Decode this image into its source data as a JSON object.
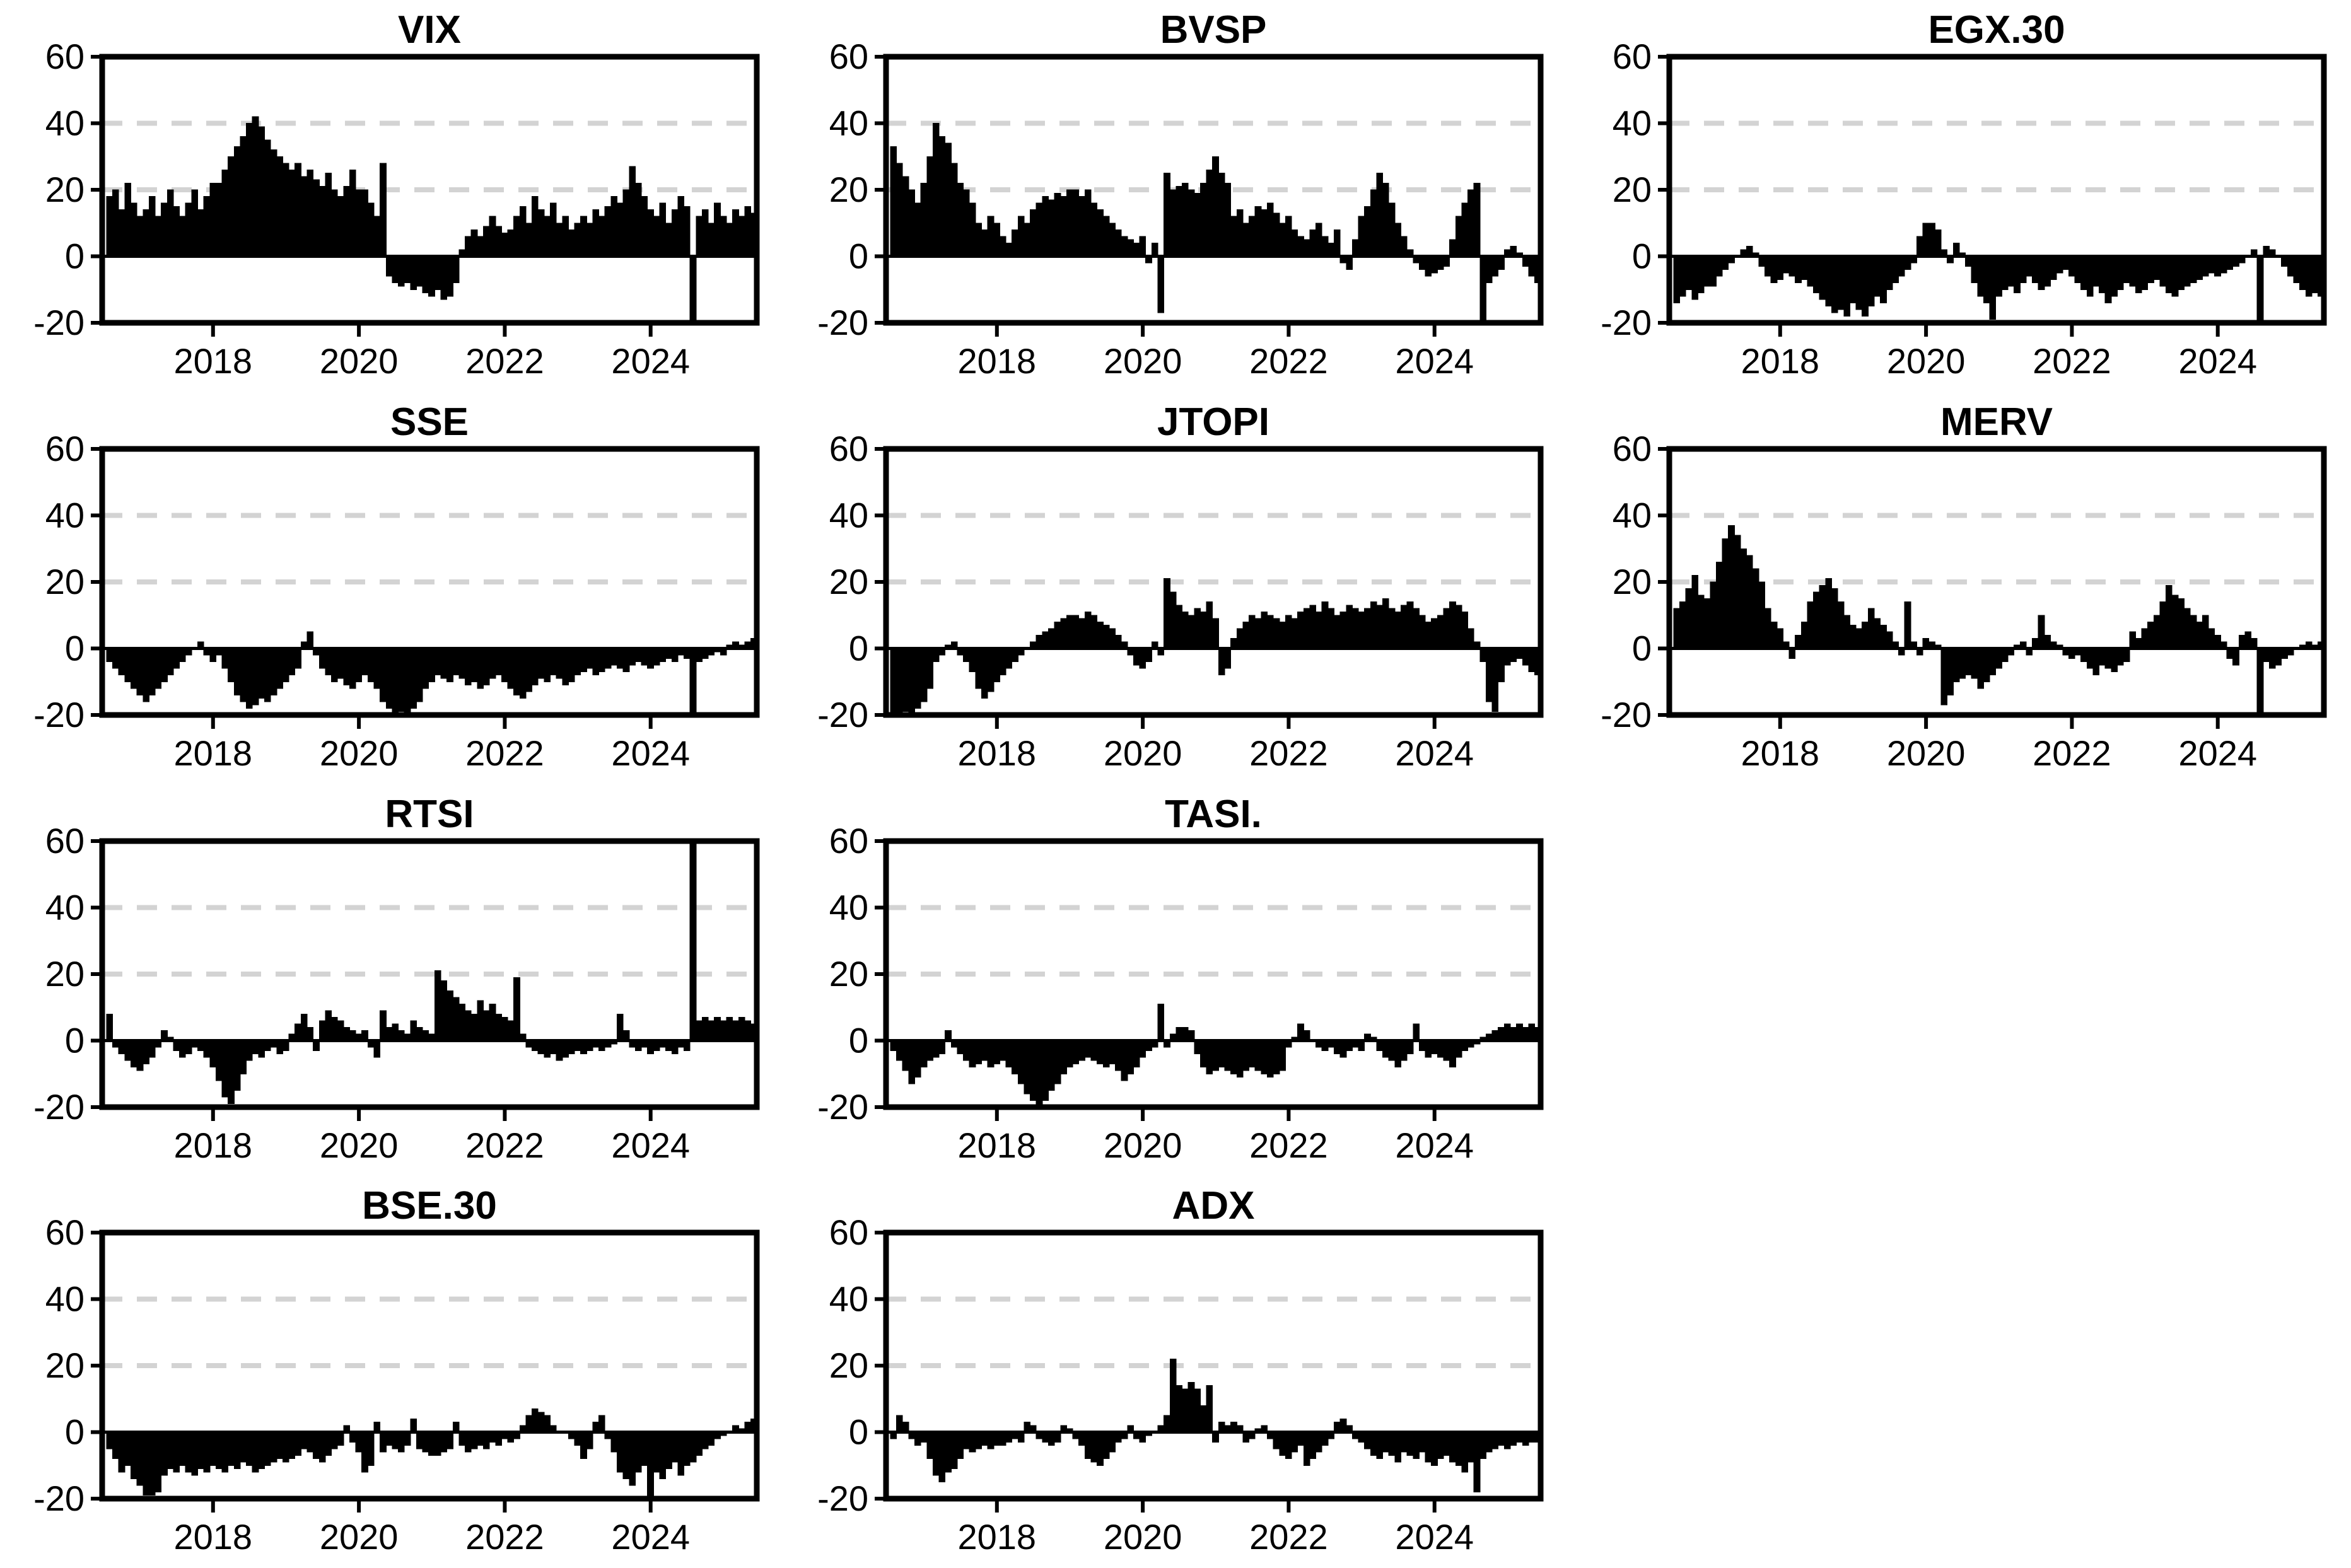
{
  "figure": {
    "description": "Grid of ten black bar time-series panels with shared axes",
    "background": "#ffffff"
  },
  "chart_data": {
    "type": "bar",
    "x_domain": [
      2016.48,
      2025.455
    ],
    "x_start": 2016.54,
    "x_step": 0.083333,
    "ylim": [
      -20,
      60
    ],
    "yticks": [
      60,
      40,
      20,
      0,
      -20
    ],
    "xticks": [
      2018,
      2020,
      2022,
      2024
    ],
    "gridlines_dashed": [
      20,
      40
    ],
    "grid_on": true,
    "legend": "none",
    "colors": {
      "bar": "#000000",
      "grid": "#d3d3d3",
      "axis": "#000000",
      "background": "#ffffff"
    },
    "panels": [
      {
        "title": "VIX",
        "values": [
          18,
          20,
          14,
          22,
          16,
          12,
          14,
          18,
          12,
          16,
          20,
          15,
          12,
          16,
          20,
          14,
          18,
          22,
          22,
          26,
          30,
          33,
          36,
          40,
          42,
          39,
          35,
          32,
          30,
          28,
          26,
          28,
          24,
          26,
          23,
          21,
          25,
          20,
          18,
          21,
          26,
          20,
          20,
          16,
          12,
          28,
          -6,
          -8,
          -9,
          -8,
          -10,
          -9,
          -11,
          -12,
          -10,
          -13,
          -12,
          -8,
          2,
          6,
          8,
          6,
          9,
          12,
          9,
          7,
          8,
          12,
          15,
          10,
          18,
          14,
          12,
          16,
          10,
          12,
          8,
          10,
          12,
          10,
          14,
          12,
          15,
          18,
          16,
          20,
          27,
          22,
          18,
          14,
          12,
          16,
          10,
          14,
          18,
          15,
          -20,
          12,
          14,
          10,
          16,
          12,
          10,
          14,
          12,
          15,
          13
        ]
      },
      {
        "title": "BVSP",
        "values": [
          33,
          28,
          24,
          20,
          16,
          22,
          30,
          40,
          36,
          34,
          28,
          22,
          20,
          16,
          10,
          8,
          12,
          10,
          6,
          4,
          8,
          12,
          10,
          14,
          16,
          18,
          17,
          19,
          18,
          20,
          20,
          18,
          20,
          16,
          14,
          12,
          10,
          8,
          6,
          5,
          4,
          6,
          -2,
          4,
          -17,
          25,
          20,
          21,
          22,
          20,
          19,
          22,
          26,
          30,
          25,
          22,
          12,
          14,
          10,
          12,
          15,
          14,
          16,
          13,
          10,
          12,
          8,
          6,
          5,
          8,
          10,
          6,
          4,
          8,
          -2,
          -4,
          5,
          12,
          15,
          20,
          25,
          22,
          16,
          10,
          6,
          2,
          -2,
          -4,
          -6,
          -5,
          -4,
          -3,
          5,
          12,
          16,
          20,
          22,
          -20,
          -8,
          -6,
          -4,
          2,
          3,
          1,
          -3,
          -6,
          -8
        ]
      },
      {
        "title": "EGX.30",
        "values": [
          -14,
          -12,
          -10,
          -13,
          -11,
          -9,
          -9,
          -6,
          -4,
          -2,
          0,
          2,
          3,
          1,
          -3,
          -6,
          -8,
          -7,
          -5,
          -6,
          -8,
          -7,
          -9,
          -11,
          -13,
          -15,
          -17,
          -16,
          -18,
          -14,
          -16,
          -18,
          -15,
          -12,
          -14,
          -10,
          -8,
          -6,
          -4,
          -2,
          6,
          10,
          10,
          8,
          2,
          -2,
          4,
          1,
          -3,
          -8,
          -12,
          -14,
          -19,
          -12,
          -10,
          -9,
          -11,
          -8,
          -6,
          -8,
          -10,
          -9,
          -7,
          -5,
          -4,
          -6,
          -8,
          -10,
          -12,
          -9,
          -11,
          -14,
          -12,
          -10,
          -8,
          -9,
          -11,
          -10,
          -8,
          -7,
          -9,
          -11,
          -12,
          -10,
          -9,
          -8,
          -7,
          -6,
          -5,
          -6,
          -5,
          -4,
          -3,
          -2,
          0,
          2,
          -20,
          3,
          2,
          0,
          -3,
          -6,
          -8,
          -10,
          -12,
          -11,
          -12
        ]
      },
      {
        "title": "SSE",
        "values": [
          -4,
          -6,
          -8,
          -10,
          -12,
          -14,
          -16,
          -14,
          -12,
          -10,
          -8,
          -6,
          -4,
          -2,
          0,
          2,
          -2,
          -4,
          -2,
          -6,
          -10,
          -14,
          -16,
          -18,
          -17,
          -15,
          -16,
          -14,
          -12,
          -10,
          -8,
          -6,
          2,
          5,
          -2,
          -6,
          -8,
          -10,
          -9,
          -11,
          -12,
          -10,
          -8,
          -10,
          -12,
          -16,
          -18,
          -20,
          -19,
          -20,
          -18,
          -16,
          -12,
          -10,
          -8,
          -9,
          -10,
          -8,
          -9,
          -11,
          -10,
          -12,
          -11,
          -9,
          -8,
          -10,
          -12,
          -14,
          -15,
          -13,
          -11,
          -9,
          -10,
          -8,
          -9,
          -11,
          -10,
          -8,
          -7,
          -6,
          -8,
          -7,
          -6,
          -5,
          -6,
          -7,
          -5,
          -4,
          -5,
          -6,
          -5,
          -4,
          -3,
          -4,
          -2,
          -3,
          -20,
          -4,
          -3,
          -2,
          -1,
          -2,
          1,
          2,
          1,
          2,
          3
        ]
      },
      {
        "title": "JTOPI",
        "values": [
          -20,
          -20,
          -19,
          -20,
          -18,
          -16,
          -12,
          -4,
          -2,
          1,
          2,
          -2,
          -4,
          -7,
          -12,
          -15,
          -13,
          -10,
          -8,
          -6,
          -4,
          -2,
          0,
          2,
          4,
          5,
          6,
          8,
          9,
          10,
          10,
          9,
          11,
          10,
          8,
          7,
          6,
          4,
          2,
          -2,
          -5,
          -6,
          -4,
          2,
          -2,
          21,
          17,
          13,
          11,
          10,
          12,
          11,
          14,
          9,
          -8,
          -6,
          3,
          6,
          8,
          10,
          9,
          11,
          10,
          9,
          8,
          10,
          9,
          11,
          12,
          13,
          11,
          14,
          12,
          10,
          11,
          13,
          12,
          11,
          12,
          14,
          13,
          15,
          12,
          11,
          13,
          14,
          12,
          10,
          8,
          9,
          10,
          12,
          14,
          13,
          11,
          6,
          2,
          -4,
          -16,
          -19,
          -10,
          -5,
          -4,
          -3,
          -5,
          -7,
          -8
        ]
      },
      {
        "title": "MERV",
        "values": [
          12,
          14,
          18,
          22,
          16,
          15,
          20,
          26,
          33,
          37,
          34,
          30,
          28,
          24,
          20,
          12,
          8,
          6,
          2,
          -3,
          4,
          8,
          14,
          17,
          19,
          21,
          18,
          14,
          10,
          7,
          6,
          8,
          12,
          9,
          7,
          5,
          2,
          -2,
          14,
          2,
          -2,
          3,
          2,
          1,
          -17,
          -14,
          -10,
          -9,
          -8,
          -9,
          -12,
          -10,
          -8,
          -6,
          -4,
          -2,
          1,
          2,
          -2,
          3,
          10,
          4,
          2,
          1,
          -2,
          -3,
          -2,
          -4,
          -6,
          -8,
          -5,
          -6,
          -7,
          -5,
          -4,
          5,
          3,
          6,
          8,
          10,
          14,
          19,
          16,
          15,
          12,
          10,
          8,
          10,
          6,
          4,
          2,
          -3,
          -5,
          4,
          5,
          3,
          -20,
          -4,
          -6,
          -5,
          -3,
          -2,
          0,
          1,
          2,
          1,
          2
        ]
      },
      {
        "title": "RTSI",
        "values": [
          8,
          -2,
          -4,
          -6,
          -8,
          -9,
          -7,
          -5,
          -2,
          3,
          1,
          -3,
          -5,
          -4,
          -2,
          -3,
          -5,
          -8,
          -12,
          -17,
          -19,
          -15,
          -10,
          -6,
          -4,
          -5,
          -3,
          -2,
          -4,
          -3,
          2,
          5,
          8,
          4,
          -3,
          6,
          9,
          7,
          6,
          4,
          3,
          2,
          3,
          -2,
          -5,
          9,
          4,
          5,
          3,
          2,
          6,
          4,
          3,
          2,
          21,
          18,
          15,
          13,
          11,
          9,
          8,
          12,
          9,
          11,
          8,
          7,
          6,
          19,
          2,
          -2,
          -3,
          -4,
          -5,
          -4,
          -6,
          -5,
          -4,
          -3,
          -4,
          -3,
          -2,
          -3,
          -2,
          -1,
          8,
          3,
          -2,
          -3,
          -2,
          -4,
          -3,
          -2,
          -3,
          -4,
          -2,
          -3,
          60,
          6,
          7,
          6,
          7,
          6,
          7,
          6,
          7,
          6,
          5
        ]
      },
      {
        "title": "TASI.",
        "values": [
          -3,
          -6,
          -9,
          -13,
          -11,
          -8,
          -6,
          -5,
          -4,
          3,
          -2,
          -4,
          -6,
          -8,
          -7,
          -6,
          -8,
          -7,
          -6,
          -8,
          -10,
          -13,
          -16,
          -18,
          -20,
          -18,
          -15,
          -13,
          -10,
          -8,
          -7,
          -6,
          -5,
          -6,
          -7,
          -8,
          -7,
          -9,
          -12,
          -10,
          -8,
          -5,
          -3,
          -2,
          11,
          -2,
          2,
          4,
          4,
          3,
          -4,
          -8,
          -10,
          -9,
          -8,
          -9,
          -10,
          -11,
          -9,
          -8,
          -9,
          -10,
          -11,
          -10,
          -9,
          -2,
          1,
          5,
          3,
          0,
          -2,
          -3,
          -2,
          -4,
          -5,
          -3,
          -2,
          -3,
          2,
          1,
          -3,
          -5,
          -6,
          -8,
          -6,
          -4,
          5,
          -3,
          -5,
          -4,
          -5,
          -6,
          -8,
          -5,
          -3,
          -2,
          -1,
          1,
          2,
          3,
          4,
          5,
          4,
          5,
          4,
          5,
          4
        ]
      },
      {
        "title": "BSE.30",
        "values": [
          -5,
          -8,
          -12,
          -10,
          -14,
          -16,
          -19,
          -19,
          -18,
          -13,
          -11,
          -12,
          -10,
          -12,
          -13,
          -11,
          -12,
          -10,
          -11,
          -12,
          -10,
          -11,
          -9,
          -10,
          -12,
          -11,
          -10,
          -9,
          -8,
          -9,
          -8,
          -7,
          -5,
          -6,
          -8,
          -9,
          -7,
          -5,
          -4,
          2,
          -3,
          -6,
          -12,
          -10,
          3,
          -6,
          -4,
          -5,
          -6,
          -4,
          4,
          -5,
          -6,
          -7,
          -7,
          -6,
          -5,
          3,
          -4,
          -6,
          -5,
          -4,
          -5,
          -3,
          -4,
          -2,
          -3,
          -2,
          2,
          5,
          7,
          6,
          5,
          2,
          0,
          0,
          -2,
          -4,
          -8,
          -5,
          3,
          5,
          -2,
          -6,
          -12,
          -14,
          -16,
          -12,
          -10,
          -20,
          -12,
          -14,
          -11,
          -9,
          -13,
          -10,
          -9,
          -7,
          -5,
          -4,
          -2,
          -1,
          0,
          2,
          1,
          3,
          4
        ]
      },
      {
        "title": "ADX",
        "values": [
          -2,
          5,
          3,
          -2,
          -4,
          -3,
          -8,
          -13,
          -15,
          -12,
          -11,
          -8,
          -5,
          -6,
          -5,
          -4,
          -5,
          -4,
          -4,
          -3,
          -2,
          -3,
          3,
          2,
          -2,
          -3,
          -4,
          -3,
          2,
          1,
          -2,
          -4,
          -8,
          -9,
          -10,
          -8,
          -6,
          -3,
          -2,
          2,
          -2,
          -3,
          -1,
          0,
          2,
          5,
          22,
          14,
          13,
          15,
          13,
          8,
          14,
          -3,
          3,
          2,
          3,
          2,
          -3,
          -2,
          1,
          2,
          -2,
          -5,
          -7,
          -8,
          -6,
          -4,
          -10,
          -8,
          -6,
          -4,
          -2,
          3,
          4,
          2,
          -2,
          -3,
          -5,
          -7,
          -8,
          -6,
          -7,
          -9,
          -6,
          -7,
          -8,
          -6,
          -9,
          -10,
          -8,
          -7,
          -9,
          -10,
          -12,
          -9,
          -18,
          -8,
          -6,
          -5,
          -4,
          -5,
          -4,
          -3,
          -4,
          -3,
          -3
        ]
      }
    ]
  }
}
